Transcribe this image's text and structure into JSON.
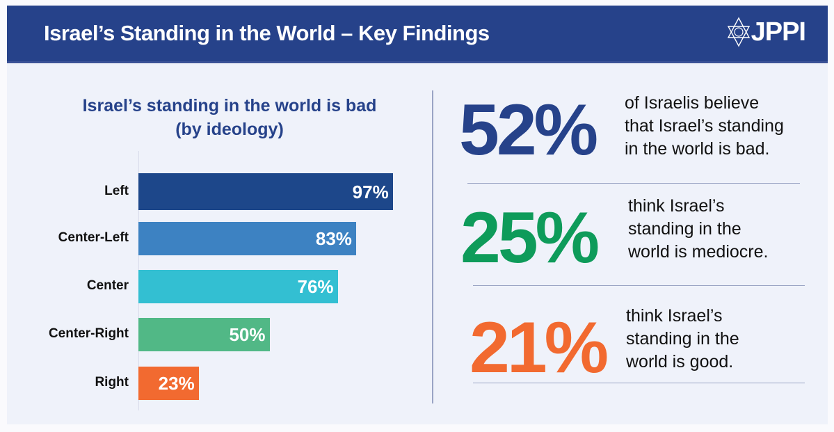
{
  "header": {
    "title": "Israel’s Standing in the World – Key Findings",
    "logo_text": "JPPI"
  },
  "chart_data": {
    "type": "bar",
    "orientation": "horizontal",
    "title": "Israel’s standing in the world is bad",
    "subtitle": "(by ideology)",
    "categories": [
      "Left",
      "Center-Left",
      "Center",
      "Center-Right",
      "Right"
    ],
    "values": [
      97,
      83,
      76,
      50,
      23
    ],
    "value_labels": [
      "97%",
      "83%",
      "76%",
      "50%",
      "23%"
    ],
    "colors": [
      "#1d478a",
      "#3d82c2",
      "#33bfd2",
      "#51b886",
      "#f26a30"
    ],
    "xlim": [
      0,
      100
    ],
    "unit": "%"
  },
  "findings": [
    {
      "value": "52%",
      "color": "#26428a",
      "lines": [
        "of Israelis believe",
        "that Israel’s standing",
        "in the world is bad."
      ]
    },
    {
      "value": "25%",
      "color": "#0e9b5a",
      "lines": [
        "think Israel’s",
        "standing in the",
        "world is mediocre."
      ]
    },
    {
      "value": "21%",
      "color": "#f26a30",
      "lines": [
        "think Israel’s",
        "standing in the",
        "world is good."
      ]
    }
  ]
}
